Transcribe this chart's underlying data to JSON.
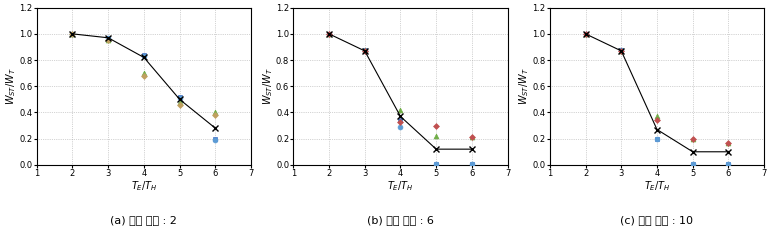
{
  "subplots": [
    {
      "title": "(a) 변형 비율 : 2",
      "series": [
        {
          "x": [
            2,
            3,
            4,
            5,
            6
          ],
          "y": [
            1.0,
            0.97,
            0.82,
            0.5,
            0.28
          ],
          "marker": "x",
          "color": "#000000",
          "ms": 4,
          "lw": 1.0,
          "connected": true
        },
        {
          "x": [
            2,
            3,
            4,
            5,
            6
          ],
          "y": [
            1.0,
            0.97,
            0.84,
            0.52,
            0.2
          ],
          "marker": "s",
          "color": "#4472c4",
          "ms": 3.5,
          "lw": 0.8,
          "connected": false
        },
        {
          "x": [
            2,
            3,
            4,
            5,
            6
          ],
          "y": [
            1.0,
            0.97,
            0.83,
            0.51,
            0.19
          ],
          "marker": "o",
          "color": "#5b9bd5",
          "ms": 3.5,
          "lw": 0.8,
          "connected": false
        },
        {
          "x": [
            2,
            3,
            4,
            5,
            6
          ],
          "y": [
            1.0,
            0.95,
            0.7,
            0.48,
            0.4
          ],
          "marker": "^",
          "color": "#70ad47",
          "ms": 3.5,
          "lw": 0.8,
          "connected": false
        },
        {
          "x": [
            2,
            3,
            4,
            5,
            6
          ],
          "y": [
            1.0,
            0.95,
            0.68,
            0.46,
            0.38
          ],
          "marker": "D",
          "color": "#c0a060",
          "ms": 3.0,
          "lw": 0.8,
          "connected": false
        }
      ]
    },
    {
      "title": "(b) 변형 비율 : 6",
      "series": [
        {
          "x": [
            2,
            3,
            4,
            5,
            6
          ],
          "y": [
            1.0,
            0.87,
            0.37,
            0.12,
            0.12
          ],
          "marker": "x",
          "color": "#000000",
          "ms": 4,
          "lw": 1.0,
          "connected": true
        },
        {
          "x": [
            2,
            3,
            4,
            5,
            6
          ],
          "y": [
            1.0,
            0.88,
            0.34,
            0.01,
            0.01
          ],
          "marker": "s",
          "color": "#4472c4",
          "ms": 3.5,
          "lw": 0.8,
          "connected": false
        },
        {
          "x": [
            2,
            3,
            4,
            5,
            6
          ],
          "y": [
            1.0,
            0.87,
            0.29,
            0.01,
            0.01
          ],
          "marker": "o",
          "color": "#5b9bd5",
          "ms": 3.5,
          "lw": 0.8,
          "connected": false
        },
        {
          "x": [
            2,
            3,
            4,
            5,
            6
          ],
          "y": [
            1.0,
            0.88,
            0.42,
            0.22,
            0.21
          ],
          "marker": "^",
          "color": "#70ad47",
          "ms": 3.5,
          "lw": 0.8,
          "connected": false
        },
        {
          "x": [
            2,
            3,
            4,
            5,
            6
          ],
          "y": [
            1.0,
            0.87,
            0.33,
            0.3,
            0.21
          ],
          "marker": "D",
          "color": "#c05050",
          "ms": 3.0,
          "lw": 0.8,
          "connected": false
        }
      ]
    },
    {
      "title": "(c) 변형 비율 : 10",
      "series": [
        {
          "x": [
            2,
            3,
            4,
            5,
            6
          ],
          "y": [
            1.0,
            0.87,
            0.27,
            0.1,
            0.1
          ],
          "marker": "x",
          "color": "#000000",
          "ms": 4,
          "lw": 1.0,
          "connected": true
        },
        {
          "x": [
            2,
            3,
            4,
            5,
            6
          ],
          "y": [
            1.0,
            0.88,
            0.2,
            0.01,
            0.01
          ],
          "marker": "s",
          "color": "#4472c4",
          "ms": 3.5,
          "lw": 0.8,
          "connected": false
        },
        {
          "x": [
            2,
            3,
            4,
            5,
            6
          ],
          "y": [
            1.0,
            0.88,
            0.2,
            0.01,
            0.01
          ],
          "marker": "o",
          "color": "#5b9bd5",
          "ms": 3.5,
          "lw": 0.8,
          "connected": false
        },
        {
          "x": [
            2,
            3,
            4,
            5,
            6
          ],
          "y": [
            1.0,
            0.87,
            0.37,
            0.2,
            0.17
          ],
          "marker": "^",
          "color": "#70ad47",
          "ms": 3.5,
          "lw": 0.8,
          "connected": false
        },
        {
          "x": [
            2,
            3,
            4,
            5,
            6
          ],
          "y": [
            1.0,
            0.87,
            0.34,
            0.2,
            0.17
          ],
          "marker": "D",
          "color": "#c05050",
          "ms": 3.0,
          "lw": 0.8,
          "connected": false
        }
      ]
    }
  ],
  "xlabel": "$T_E/T_H$",
  "ylabel": "$W_{ST}/W_T$",
  "xlim": [
    1,
    7
  ],
  "ylim": [
    0,
    1.2
  ],
  "xticks": [
    1,
    2,
    3,
    4,
    5,
    6,
    7
  ],
  "yticks": [
    0,
    0.2,
    0.4,
    0.6,
    0.8,
    1.0,
    1.2
  ],
  "grid_color": "#aaaaaa",
  "grid_style": ":",
  "title_fontsize": 8,
  "axis_fontsize": 7,
  "tick_fontsize": 6,
  "bg_color": "#ffffff",
  "fig_width": 7.71,
  "fig_height": 2.29,
  "dpi": 100
}
